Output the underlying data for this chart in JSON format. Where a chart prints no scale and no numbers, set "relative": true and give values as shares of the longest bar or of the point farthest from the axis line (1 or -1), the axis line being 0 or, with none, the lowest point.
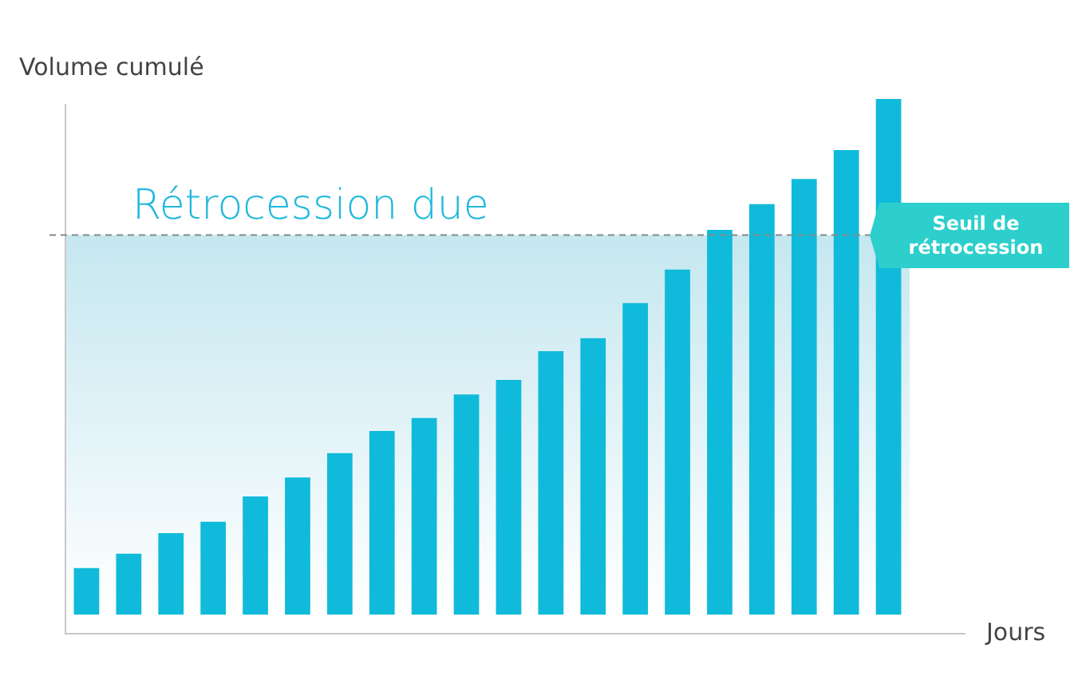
{
  "chart_data": {
    "type": "bar",
    "xlabel": "Jours",
    "ylabel": "Volume cumulé",
    "relative": true,
    "legend": false,
    "categories": [
      null,
      null,
      null,
      null,
      null,
      null,
      null,
      null,
      null,
      null,
      null,
      null,
      null,
      null,
      null,
      null,
      null,
      null,
      null,
      null
    ],
    "values": [
      0.09,
      0.118,
      0.158,
      0.18,
      0.229,
      0.266,
      0.313,
      0.356,
      0.381,
      0.427,
      0.455,
      0.511,
      0.536,
      0.604,
      0.669,
      0.746,
      0.796,
      0.845,
      0.901,
      1
    ],
    "color": "#10bada",
    "bands": [
      {
        "axis": "y",
        "from": 0,
        "to": 0.736,
        "label": "Rétrocession due",
        "color": "#c5e7f0"
      }
    ],
    "ref_lines": [
      {
        "axis": "y",
        "value": 0.736,
        "label": "Seuil de rétrocession",
        "color": "#888888",
        "line_style": "dashed"
      }
    ]
  }
}
